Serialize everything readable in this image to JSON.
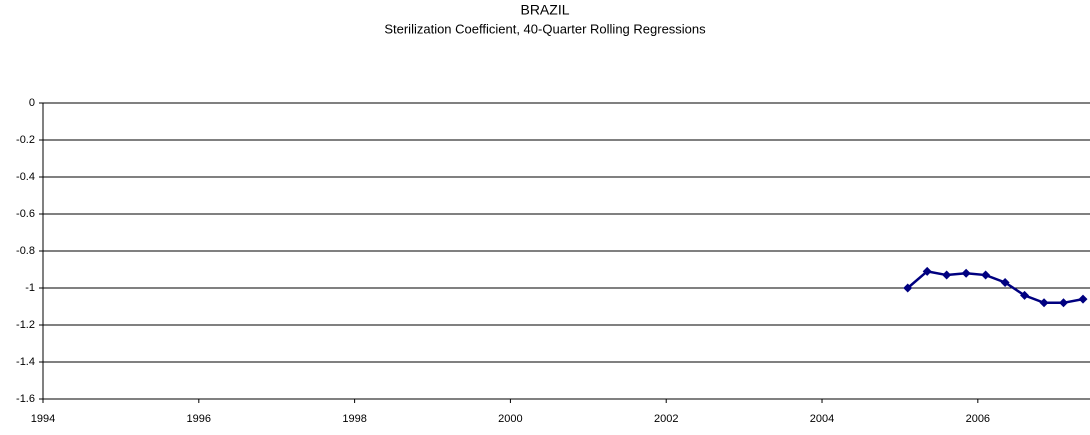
{
  "chart_data": {
    "type": "line",
    "title": "BRAZIL",
    "subtitle": "Sterilization Coefficient, 40-Quarter Rolling Regressions",
    "x": [
      2005.1,
      2005.35,
      2005.6,
      2005.85,
      2006.1,
      2006.35,
      2006.6,
      2006.85,
      2007.1,
      2007.35
    ],
    "series": [
      {
        "name": "Sterilization Coefficient",
        "color": "#000080",
        "values": [
          -1.0,
          -0.91,
          -0.93,
          -0.92,
          -0.93,
          -0.97,
          -1.04,
          -1.08,
          -1.08,
          -1.06
        ]
      }
    ],
    "xlim": [
      1994,
      2007.44
    ],
    "xticks": [
      1994,
      1996,
      1998,
      2000,
      2002,
      2004,
      2006
    ],
    "ylim": [
      -1.6,
      0
    ],
    "yticks": [
      0,
      -0.2,
      -0.4,
      -0.6,
      -0.8,
      -1,
      -1.2,
      -1.4,
      -1.6
    ],
    "grid": true
  }
}
